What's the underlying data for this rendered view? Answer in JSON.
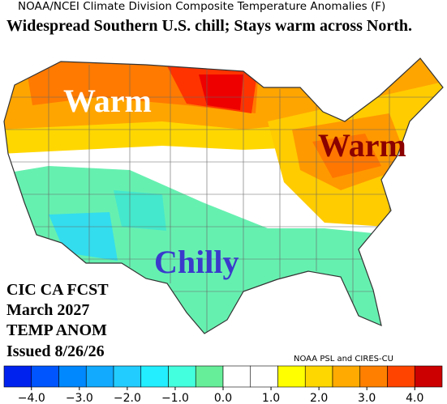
{
  "header": {
    "title": "NOAA/NCEI Climate Division Composite Temperature Anomalies (F)",
    "headline": "Widespread Southern U.S. chill; Stays warm across North."
  },
  "map": {
    "labels": [
      "Warm",
      "Warm",
      "Chilly"
    ]
  },
  "info": {
    "lines": [
      "CIC CA FCST",
      "March 2027",
      "TEMP ANOM",
      "Issued 8/26/26"
    ]
  },
  "credit": "NOAA PSL and CIRES-CU",
  "colorbar": {
    "colors": [
      "#0022ee",
      "#0055ff",
      "#0088ff",
      "#11aaff",
      "#22ccff",
      "#22eeff",
      "#44ffdd",
      "#66ee99",
      "#ffffff",
      "#ffffff",
      "#ffff00",
      "#ffd700",
      "#ffaa00",
      "#ff8000",
      "#ff4400",
      "#cc0000"
    ],
    "labels": [
      "−4.0",
      "−3.0",
      "−2.0",
      "−1.0",
      "0.0",
      "1.0",
      "2.0",
      "3.0",
      "4.0"
    ]
  }
}
